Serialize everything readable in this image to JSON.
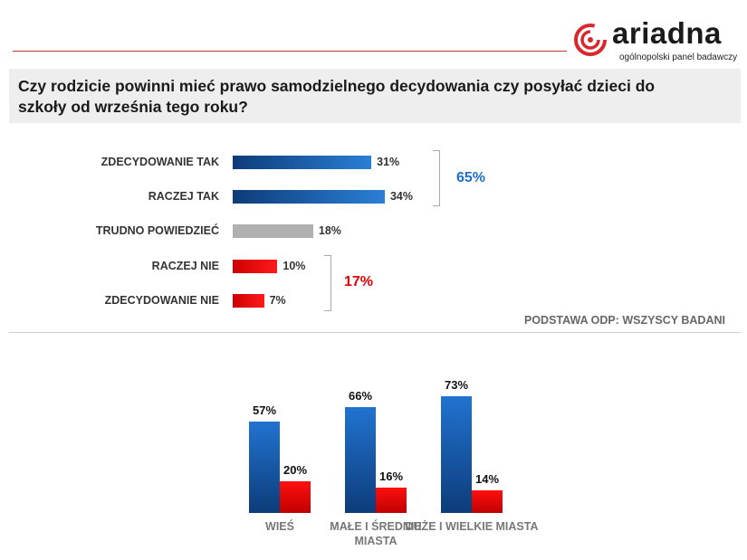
{
  "header": {
    "logo_text": "ariadna",
    "logo_subtitle": "ogólnopolski panel badawczy",
    "title": "Czy rodzicie powinni mieć prawo samodzielnego decydowania czy posyłać dzieci do szkoły od września tego roku?"
  },
  "colors": {
    "positive": "#1f6fc9",
    "negative": "#e00000",
    "neutral": "#b0b0b0",
    "brand": "#d9272e"
  },
  "chart_data": [
    {
      "type": "bar",
      "orientation": "horizontal",
      "categories": [
        "ZDECYDOWANIE TAK",
        "RACZEJ TAK",
        "TRUDNO POWIEDZIEĆ",
        "RACZEJ NIE",
        "ZDECYDOWANIE NIE"
      ],
      "values": [
        31,
        34,
        18,
        10,
        7
      ],
      "labels": [
        "31%",
        "34%",
        "18%",
        "10%",
        "7%"
      ],
      "groups": [
        {
          "total": "65%",
          "members": [
            0,
            1
          ]
        },
        {
          "total": "17%",
          "members": [
            3,
            4
          ]
        }
      ],
      "note": "PODSTAWA ODP: WSZYSCY BADANI"
    },
    {
      "type": "bar",
      "categories": [
        "WIEŚ",
        "MAŁE I ŚREDNIE MIASTA",
        "DUŻE I WIELKIE MIASTA"
      ],
      "series": [
        {
          "values": [
            57,
            66,
            73
          ],
          "labels": [
            "57%",
            "66%",
            "73%"
          ]
        },
        {
          "values": [
            20,
            16,
            14
          ],
          "labels": [
            "20%",
            "16%",
            "14%"
          ]
        }
      ]
    }
  ]
}
